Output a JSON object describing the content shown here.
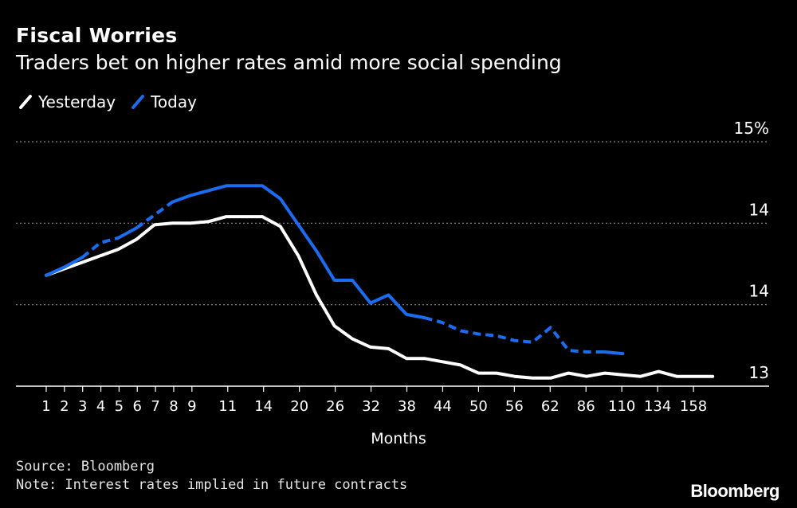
{
  "title": "Fiscal Worries",
  "subtitle": "Traders bet on higher rates amid more social spending",
  "legend": [
    {
      "label": "Yesterday",
      "color": "#ffffff",
      "icon": "slash-line-icon"
    },
    {
      "label": "Today",
      "color": "#1a6cf0",
      "icon": "slash-line-icon"
    }
  ],
  "source": "Source: Bloomberg",
  "note": "Note: Interest rates implied in future contracts",
  "brand": "Bloomberg",
  "chart_data": {
    "type": "line",
    "title": "Fiscal Worries",
    "subtitle": "Traders bet on higher rates amid more social spending",
    "xlabel": "Months",
    "ylabel": "",
    "y_tick_labels": [
      "13",
      "14",
      "14",
      "15%"
    ],
    "ylim": [
      13,
      14.5
    ],
    "x_tick_labels": [
      "1",
      "2",
      "3",
      "4",
      "5",
      "6",
      "7",
      "8",
      "9",
      "11",
      "14",
      "20",
      "26",
      "32",
      "38",
      "44",
      "50",
      "56",
      "62",
      "86",
      "110",
      "134",
      "158"
    ],
    "grid": true,
    "grid_style": "dotted",
    "legend_position": "top-left",
    "y_axis_side": "right",
    "series": [
      {
        "name": "Yesterday",
        "color": "#ffffff",
        "style": "solid",
        "points": [
          [
            1,
            13.68
          ],
          [
            2,
            13.72
          ],
          [
            3,
            13.76
          ],
          [
            4,
            13.8
          ],
          [
            5,
            13.84
          ],
          [
            6,
            13.9
          ],
          [
            7,
            13.99
          ],
          [
            8,
            14.0
          ],
          [
            9,
            14.0
          ],
          [
            10,
            14.01
          ],
          [
            11,
            14.04
          ],
          [
            12,
            14.04
          ],
          [
            13,
            14.04
          ],
          [
            14,
            13.98
          ],
          [
            15,
            13.8
          ],
          [
            16,
            13.56
          ],
          [
            17,
            13.37
          ],
          [
            18,
            13.29
          ],
          [
            19,
            13.24
          ],
          [
            20,
            13.23
          ],
          [
            21,
            13.17
          ],
          [
            22,
            13.17
          ],
          [
            23,
            13.15
          ],
          [
            24,
            13.13
          ],
          [
            25,
            13.08
          ],
          [
            26,
            13.08
          ],
          [
            27,
            13.06
          ],
          [
            28,
            13.05
          ],
          [
            29,
            13.05
          ],
          [
            30,
            13.08
          ],
          [
            31,
            13.06
          ],
          [
            32,
            13.08
          ],
          [
            33,
            13.07
          ],
          [
            34,
            13.06
          ],
          [
            35,
            13.09
          ],
          [
            36,
            13.06
          ],
          [
            37,
            13.06
          ],
          [
            38,
            13.06
          ]
        ]
      },
      {
        "name": "Today",
        "color": "#1a6cf0",
        "style": "solid-and-dashed",
        "points": [
          [
            1,
            13.68
          ],
          [
            2,
            13.73
          ],
          [
            3,
            13.79
          ],
          [
            4,
            13.88
          ],
          [
            5,
            13.91
          ],
          [
            6,
            13.97
          ],
          [
            7,
            14.05
          ],
          [
            8,
            14.13
          ],
          [
            9,
            14.17
          ],
          [
            10,
            14.2
          ],
          [
            11,
            14.23
          ],
          [
            12,
            14.23
          ],
          [
            13,
            14.23
          ],
          [
            14,
            14.15
          ],
          [
            15,
            13.99
          ],
          [
            16,
            13.83
          ],
          [
            17,
            13.65
          ],
          [
            18,
            13.65
          ],
          [
            19,
            13.51
          ],
          [
            20,
            13.56
          ],
          [
            21,
            13.44
          ],
          [
            22,
            13.42
          ],
          [
            23,
            13.39
          ],
          [
            24,
            13.34
          ],
          [
            25,
            13.32
          ],
          [
            26,
            13.31
          ],
          [
            27,
            13.28
          ],
          [
            28,
            13.27
          ],
          [
            29,
            13.36
          ],
          [
            30,
            13.22
          ],
          [
            31,
            13.21
          ],
          [
            32,
            13.21
          ],
          [
            33,
            13.2
          ]
        ]
      }
    ]
  }
}
